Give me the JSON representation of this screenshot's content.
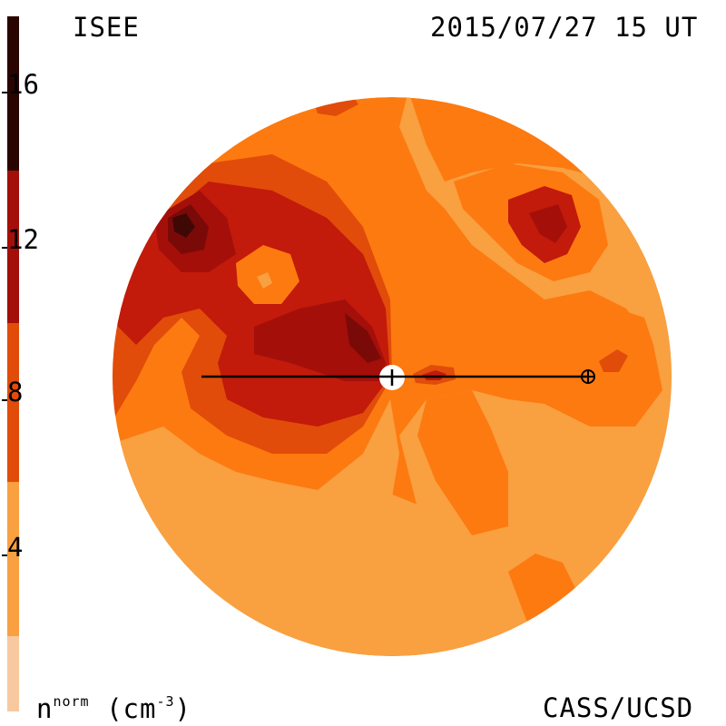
{
  "header": {
    "left_label": "ISEE",
    "right_label": "2015/07/27 15 UT"
  },
  "footer": {
    "quantity_label": "n",
    "quantity_superscript": "norm",
    "unit_label": "(cm",
    "unit_superscript": "-3",
    "unit_close": ")",
    "credit": "CASS/UCSD"
  },
  "colorbar": {
    "ticks": [
      "4",
      "8",
      "12",
      "16"
    ],
    "levels": [
      {
        "range": [
          0,
          2
        ],
        "color": "#f8c9a0"
      },
      {
        "range": [
          2,
          6
        ],
        "color": "#f9a040"
      },
      {
        "range": [
          6,
          10
        ],
        "color": "#e14c0a"
      },
      {
        "range": [
          10,
          14
        ],
        "color": "#a40f0a"
      },
      {
        "range": [
          14,
          18
        ],
        "color": "#2a0500"
      }
    ]
  },
  "map": {
    "palette": {
      "level_3": "#f9a040",
      "level_5": "#fd7a10",
      "level_7": "#e14c0a",
      "level_9": "#c21a0b",
      "level_11": "#a40f0a",
      "level_13": "#7a0a08",
      "level_15": "#3f0805"
    }
  }
}
